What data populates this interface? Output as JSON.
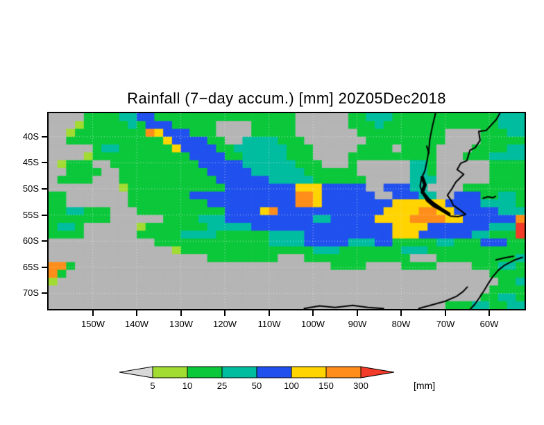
{
  "title": "Rainfall (7−day accum.) [mm] 20Z05Dec2018",
  "chart_data": {
    "type": "heatmap",
    "title": "Rainfall (7−day accum.) [mm] 20Z05Dec2018",
    "units_label": "[mm]",
    "lon_range": [
      -160,
      -52
    ],
    "lat_range": [
      -73,
      -35.5
    ],
    "x_ticks": [
      {
        "label": "150W",
        "lon": -150
      },
      {
        "label": "140W",
        "lon": -140
      },
      {
        "label": "130W",
        "lon": -130
      },
      {
        "label": "120W",
        "lon": -120
      },
      {
        "label": "110W",
        "lon": -110
      },
      {
        "label": "100W",
        "lon": -100
      },
      {
        "label": "90W",
        "lon": -90
      },
      {
        "label": "80W",
        "lon": -80
      },
      {
        "label": "70W",
        "lon": -70
      },
      {
        "label": "60W",
        "lon": -60
      }
    ],
    "y_ticks": [
      {
        "label": "40S",
        "lat": -40
      },
      {
        "label": "45S",
        "lat": -45
      },
      {
        "label": "50S",
        "lat": -50
      },
      {
        "label": "55S",
        "lat": -55
      },
      {
        "label": "60S",
        "lat": -60
      },
      {
        "label": "65S",
        "lat": -65
      },
      {
        "label": "70S",
        "lat": -70
      }
    ],
    "levels": [
      5,
      10,
      25,
      50,
      100,
      150,
      300
    ],
    "level_labels": [
      "5",
      "10",
      "25",
      "50",
      "100",
      "150",
      "300"
    ],
    "legend": {
      "underflow": "<5 mm (gray arrow)",
      "overflow": ">300 mm (red arrow)",
      "position": "bottom"
    },
    "colorbar_colors": [
      "#d8d8d8",
      "#a2dc32",
      "#0bc83a",
      "#00bda0",
      "#2050ee",
      "#ffd400",
      "#ff8d1a",
      "#f23b28"
    ],
    "palette": {
      ".": "#b5b5b5",
      "l": "#a2dc32",
      "g": "#0bc83a",
      "t": "#00bda0",
      "b": "#2050ee",
      "y": "#ffd400",
      "o": "#ff8d1a",
      "r": "#f23b28"
    },
    "palette_meaning": {
      ".": "< 5 mm",
      "l": "5-10 mm",
      "g": "10-25 mm",
      "t": "25-50 mm",
      "b": "50-100 mm",
      "y": "100-150 mm",
      "o": "150-300 mm",
      "r": "> 300 mm"
    },
    "grid": {
      "ncols": 54,
      "nrows": 25,
      "rows": [
        "....ggggttbbgggggggggggggggg......ggtttggggggggggggttt",
        "...lgggggtgbbbggggg....ggggg......gggtgggggggggggggttt",
        "..lggggggggoybbbggg....ggggg.......gggggggggg....gggtt",
        "..gggggggggggybbbbgg..ttttggg.......ggggggggg....ggggg",
        ".....gttggggggybbbbggttttttggg.....gggg.gggg....ggggtt",
        "....lgggggggggggbbbbggtttttggg....gggggggggg...gggtttt",
        ".lggg..ggggggggggbbbbbttttttggg...g......ttg......gggg",
        "..gggg..ggggggggggbbbbbttttttgggggg......ttg......gggg",
        ".gggg...gggggggggggbbbbbbtttttgggggg.....ttt......gggg",
        "........lgggggggggggbbbbbbbbyyybbbbb..bbbtt....ggggggg",
        "gg.......gggggggbbbbbbbbbbbbooybbbbbb..bbbtt..bbbggttg",
        "gg.......gggggggggbbbbbbbbbbooybbbbbbbbyyyyyybbbbttttg",
        "ggttggg...ggggggggggbbbbyobbbbbbbbbbbbyyyyooyybbbbbttt",
        "ggggggg......ggggtttbbbbbbbbbbttbbbbbyyyyooooyybbbbbbo",
        "gttg......lgggggggtttttbbbbbbbbbbbbbbbbyyyybbbbbbbtttr",
        "gggg......gggggttttggggggttttbbbbbbbbbbyyybbbbbbttgggr",
        "............gggggggggggggttttbbbbbtttbbgggggttgggbbbgg",
        "..............lgggggggggggggggtttgggggggtttggggggggggg",
        "..................gggggggg...gggggggggggg...gggggggggt",
        "oog.............................gggg....gggg....gggttg",
        "og................................................gggg",
        "l..................................................ggt",
        "..................................................gggg",
        ".................................................ggttg",
        ".............................................gggttggtt"
      ]
    },
    "coastlines": [
      {
        "name": "chile-west-coast",
        "width": 2,
        "points": [
          [
            -72.2,
            -35.5
          ],
          [
            -72.9,
            -38
          ],
          [
            -73.5,
            -40.5
          ],
          [
            -73.7,
            -42.5
          ],
          [
            -74.1,
            -44.5
          ],
          [
            -74.6,
            -46.5
          ],
          [
            -75.4,
            -48
          ],
          [
            -75.7,
            -49.5
          ],
          [
            -75.0,
            -51
          ],
          [
            -74.2,
            -52.3
          ],
          [
            -72.8,
            -53.3
          ],
          [
            -70.8,
            -54.2
          ],
          [
            -68.8,
            -55.2
          ],
          [
            -67.0,
            -55.3
          ],
          [
            -65.4,
            -54.9
          ]
        ]
      },
      {
        "name": "argentina-east-coast",
        "width": 2,
        "points": [
          [
            -65.4,
            -54.9
          ],
          [
            -66.4,
            -54.2
          ],
          [
            -68.2,
            -53.1
          ],
          [
            -68.6,
            -52.3
          ],
          [
            -69.5,
            -51.2
          ],
          [
            -68.5,
            -50
          ],
          [
            -67.6,
            -48.7
          ],
          [
            -65.8,
            -47.2
          ],
          [
            -67.3,
            -46.3
          ],
          [
            -66.5,
            -45.1
          ],
          [
            -65.1,
            -44.6
          ],
          [
            -64.4,
            -42.6
          ],
          [
            -63.2,
            -42.1
          ],
          [
            -62.1,
            -40.7
          ],
          [
            -62.4,
            -39
          ],
          [
            -60.7,
            -38.8
          ],
          [
            -58.4,
            -36.7
          ],
          [
            -57.6,
            -35.5
          ]
        ]
      },
      {
        "name": "chilean-archipelago",
        "width": 5,
        "points": [
          [
            -75.2,
            -47.8
          ],
          [
            -74.6,
            -49.2
          ],
          [
            -75.2,
            -50.6
          ],
          [
            -74.0,
            -51.9
          ],
          [
            -72.6,
            -52.9
          ],
          [
            -70.9,
            -53.9
          ],
          [
            -69.2,
            -54.8
          ]
        ]
      },
      {
        "name": "chiloe-island",
        "width": 2,
        "points": [
          [
            -74.2,
            -41.8
          ],
          [
            -73.7,
            -43.2
          ]
        ]
      },
      {
        "name": "falkland-islands",
        "width": 2,
        "points": [
          [
            -61.4,
            -51.8
          ],
          [
            -60.3,
            -51.5
          ],
          [
            -59.2,
            -51.7
          ],
          [
            -58.6,
            -51.4
          ]
        ]
      },
      {
        "name": "antarctic-peninsula",
        "width": 2,
        "points": [
          [
            -52.5,
            -63.1
          ],
          [
            -54.5,
            -63.7
          ],
          [
            -56.5,
            -64.6
          ],
          [
            -58.0,
            -65.6
          ],
          [
            -59.3,
            -66.9
          ],
          [
            -60.3,
            -68.2
          ],
          [
            -61.3,
            -69.6
          ],
          [
            -62.3,
            -70.9
          ],
          [
            -63.3,
            -72.1
          ],
          [
            -64.3,
            -73
          ]
        ]
      },
      {
        "name": "south-shetlands",
        "width": 2,
        "points": [
          [
            -54.5,
            -62.9
          ],
          [
            -56.5,
            -63.2
          ],
          [
            -58.5,
            -63.6
          ]
        ]
      },
      {
        "name": "antarctic-coast-west",
        "width": 2,
        "points": [
          [
            -102,
            -72.9
          ],
          [
            -98.5,
            -72.4
          ],
          [
            -95,
            -72.7
          ],
          [
            -91,
            -72.3
          ],
          [
            -87.5,
            -72.7
          ],
          [
            -84,
            -72.9
          ]
        ]
      },
      {
        "name": "antarctic-coast-east",
        "width": 2,
        "points": [
          [
            -76,
            -72.9
          ],
          [
            -73,
            -72.2
          ],
          [
            -70,
            -71.5
          ],
          [
            -67.5,
            -70.6
          ],
          [
            -66,
            -69.7
          ],
          [
            -65,
            -68.8
          ]
        ]
      }
    ],
    "grid_lines": {
      "style": "dotted",
      "color": "rgba(240,240,240,0.7)"
    }
  }
}
